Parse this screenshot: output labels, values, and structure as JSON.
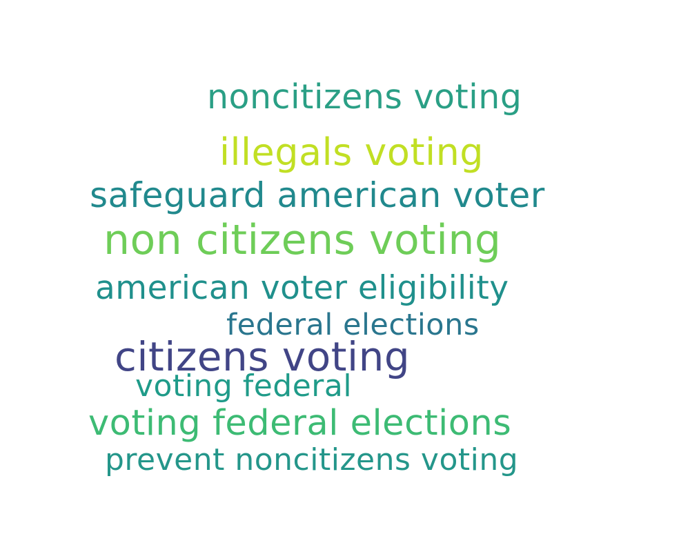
{
  "words": [
    {
      "text": "noncitizens voting",
      "color": "#2a9f85"
    },
    {
      "text": "illegals voting",
      "color": "#c1df24"
    },
    {
      "text": "safeguard american voter",
      "color": "#21898d"
    },
    {
      "text": "non citizens voting",
      "color": "#6ecd58"
    },
    {
      "text": "american voter eligibility",
      "color": "#20908c"
    },
    {
      "text": "federal elections",
      "color": "#2a768e"
    },
    {
      "text": "citizens voting",
      "color": "#414586"
    },
    {
      "text": "voting federal",
      "color": "#1f9b89"
    },
    {
      "text": "voting federal elections",
      "color": "#3dbb74"
    },
    {
      "text": "prevent noncitizens voting",
      "color": "#24968a"
    }
  ]
}
